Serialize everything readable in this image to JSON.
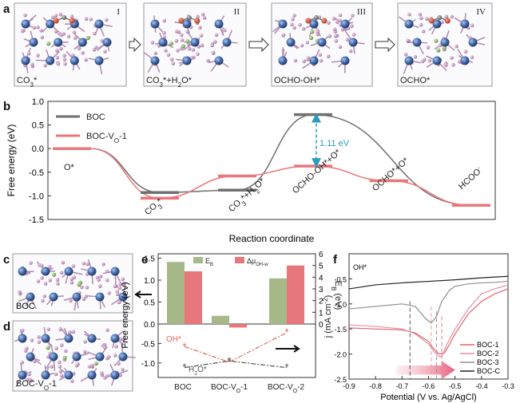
{
  "panel_labels": {
    "a": "a",
    "b": "b",
    "c": "c",
    "d": "d",
    "e": "e",
    "f": "f"
  },
  "panel_a": {
    "steps": [
      {
        "roman": "I",
        "caption_main": "CO",
        "caption_sub": "3",
        "caption_rest": "*"
      },
      {
        "roman": "II",
        "caption_main": "CO",
        "caption_sub": "3",
        "caption_rest": "*+H",
        "caption_sub2": "2",
        "caption_rest2": "O*"
      },
      {
        "roman": "III",
        "caption_main": "OCHO-OH*"
      },
      {
        "roman": "IV",
        "caption_main": "OCHO*"
      }
    ]
  },
  "chart_data": [
    {
      "panel": "b",
      "type": "line",
      "ylabel": "Free energy (eV)",
      "xlabel": "Reaction coordinate",
      "ylim": [
        -1.5,
        1.0
      ],
      "yticks": [
        "-1.5",
        "-1.0",
        "-0.5",
        "0.0",
        "0.5",
        "1.0"
      ],
      "legend": [
        {
          "name": "BOC",
          "color": "#707070"
        },
        {
          "name": "BOC-VO-1",
          "name_main": "BOC-V",
          "name_sub": "O",
          "name_rest": "-1",
          "color": "#e8777b"
        }
      ],
      "states": [
        "O*",
        "CO3*",
        "CO3*+H2O*",
        "OCHO-OH*+O*",
        "OCHO*+O*",
        "HCOO-"
      ],
      "state_labels": [
        {
          "main": "O*"
        },
        {
          "main": "CO",
          "sub": "3",
          "rest": "*"
        },
        {
          "main": "CO",
          "sub": "3",
          "rest": "*+H",
          "sub2": "2",
          "rest2": "O*"
        },
        {
          "main": "OCHO-OH*+O*"
        },
        {
          "main": "OCHO*+O*"
        },
        {
          "main": "HCOO",
          "sup": "-"
        }
      ],
      "series": [
        {
          "name": "BOC",
          "values": [
            0.0,
            -0.93,
            -0.88,
            0.72,
            null,
            -1.2
          ],
          "color": "#707070"
        },
        {
          "name": "BOC-VO-1",
          "values": [
            0.0,
            -1.05,
            -0.58,
            -0.37,
            -0.68,
            -1.2
          ],
          "color": "#e8777b"
        }
      ],
      "annotation": "1.11 eV"
    },
    {
      "panel": "e",
      "type": "bar",
      "categories": [
        "BOC",
        "BOC-VO-1",
        "BOC-VO-2"
      ],
      "category_labels": [
        {
          "main": "BOC"
        },
        {
          "main": "BOC-V",
          "sub": "O",
          "rest": "-1"
        },
        {
          "main": "BOC-V",
          "sub": "O",
          "rest": "-2"
        }
      ],
      "ylabel_left": "Free energy (eV)",
      "ylabel_right": "E",
      "ylabel_right_sub": "B",
      "ylabel_right_rest": " (eV)",
      "left_yticks": [
        "-1.0",
        "-0.5",
        "0.0",
        "0.5",
        "1.0",
        "1.5"
      ],
      "right_yticks": [
        "0",
        "1",
        "2",
        "3",
        "4",
        "5",
        "6"
      ],
      "legend": [
        {
          "name": "E",
          "sub": "B",
          "color": "#a7b889"
        },
        {
          "name": "Δμ",
          "sub": "OH-w",
          "color": "#e8777b"
        }
      ],
      "series": [
        {
          "name": "EB",
          "values": [
            5.3,
            0.7,
            3.9
          ],
          "color": "#a7b889"
        },
        {
          "name": "ΔμOH-w",
          "values": [
            4.5,
            -0.3,
            5.0
          ],
          "color": "#e8777b"
        }
      ],
      "line_series": [
        {
          "name": "OH*",
          "values": [
            -0.58,
            -0.98,
            -0.22
          ],
          "color": "#e0675e"
        },
        {
          "name": "H2O*",
          "name_main": "H",
          "name_sub": "2",
          "name_rest": "O*",
          "values": [
            -1.12,
            -0.95,
            -1.12
          ],
          "color": "#555555"
        }
      ]
    },
    {
      "panel": "f",
      "type": "line",
      "xlabel": "Potential (V vs. Ag/AgCl)",
      "ylabel_main": "j (mA cm",
      "ylabel_sup": "-2",
      "ylabel_rest": ")",
      "xlim": [
        -0.9,
        -0.3
      ],
      "ylim": [
        -2.5,
        0.0
      ],
      "xticks": [
        "-0.9",
        "-0.8",
        "-0.7",
        "-0.6",
        "-0.5",
        "-0.4",
        "-0.3"
      ],
      "yticks": [
        "-2.5",
        "-2.0",
        "-1.5",
        "-1.0",
        "-0.5"
      ],
      "inner_label": "OH*",
      "series": [
        {
          "name": "BOC-1",
          "color": "#e0646a",
          "x": [
            -0.9,
            -0.8,
            -0.7,
            -0.65,
            -0.6,
            -0.58,
            -0.56,
            -0.54,
            -0.52,
            -0.5,
            -0.45,
            -0.4,
            -0.35,
            -0.3
          ],
          "y": [
            -1.48,
            -1.5,
            -1.52,
            -1.58,
            -1.75,
            -1.9,
            -2.0,
            -1.98,
            -1.8,
            -1.6,
            -1.2,
            -0.95,
            -0.8,
            -0.7
          ]
        },
        {
          "name": "BOC-2",
          "color": "#e090a8",
          "x": [
            -0.9,
            -0.8,
            -0.7,
            -0.65,
            -0.6,
            -0.58,
            -0.56,
            -0.55,
            -0.53,
            -0.5,
            -0.45,
            -0.4,
            -0.35,
            -0.3
          ],
          "y": [
            -1.42,
            -1.45,
            -1.5,
            -1.6,
            -1.8,
            -1.95,
            -2.05,
            -2.05,
            -1.8,
            -1.5,
            -1.1,
            -0.8,
            -0.7,
            -0.62
          ]
        },
        {
          "name": "BOC-3",
          "color": "#909090",
          "x": [
            -0.9,
            -0.8,
            -0.7,
            -0.65,
            -0.61,
            -0.59,
            -0.57,
            -0.55,
            -0.52,
            -0.5,
            -0.45,
            -0.4,
            -0.35,
            -0.3
          ],
          "y": [
            -1.1,
            -1.05,
            -1.0,
            -1.05,
            -1.3,
            -1.38,
            -1.25,
            -0.95,
            -0.72,
            -0.65,
            -0.6,
            -0.58,
            -0.57,
            -0.55
          ]
        },
        {
          "name": "BOC-C",
          "color": "#222222",
          "x": [
            -0.9,
            -0.8,
            -0.7,
            -0.6,
            -0.5,
            -0.4,
            -0.3
          ],
          "y": [
            -0.7,
            -0.62,
            -0.58,
            -0.55,
            -0.52,
            -0.48,
            -0.45
          ]
        }
      ],
      "dashed_markers": [
        -0.67,
        -0.59,
        -0.57,
        -0.55
      ]
    }
  ],
  "panel_c": {
    "label": "BOC"
  },
  "panel_d": {
    "label_main": "BOC-V",
    "label_sub": "O",
    "label_rest": "-1"
  },
  "colors": {
    "boc_gray": "#707070",
    "vo_red": "#e8777b",
    "eb_green": "#a7b889",
    "atom_blue": "#3a5f9a",
    "atom_pink": "#c79bc4",
    "atom_green": "#8ab06a",
    "arrow_teal": "#2a9bbf"
  }
}
